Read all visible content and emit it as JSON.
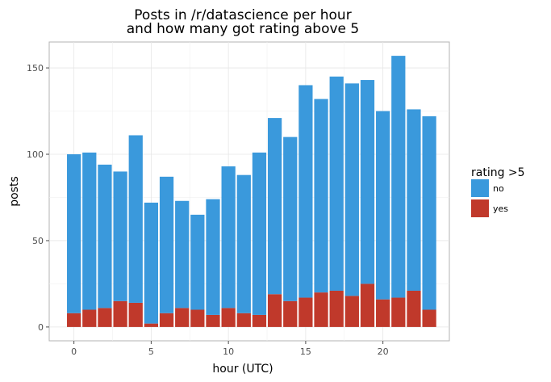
{
  "chart_data": {
    "type": "bar",
    "stacked": true,
    "title_line1": "Posts in /r/datascience per hour",
    "title_line2": "and how many got rating above 5",
    "xlabel": "hour (UTC)",
    "ylabel": "posts",
    "x": [
      0,
      1,
      2,
      3,
      4,
      5,
      6,
      7,
      8,
      9,
      10,
      11,
      12,
      13,
      14,
      15,
      16,
      17,
      18,
      19,
      20,
      21,
      22,
      23
    ],
    "xticks": [
      0,
      5,
      10,
      15,
      20
    ],
    "yticks": [
      0,
      50,
      100,
      150
    ],
    "xlim": [
      -1.6,
      24.3
    ],
    "ylim": [
      -8,
      165
    ],
    "grid": true,
    "legend_title": "rating >5",
    "legend_position": "right",
    "series": [
      {
        "name": "no",
        "color": "#3a99dc",
        "values": [
          92,
          91,
          83,
          75,
          97,
          70,
          79,
          62,
          55,
          67,
          82,
          80,
          94,
          102,
          95,
          123,
          112,
          124,
          123,
          118,
          109,
          140,
          105,
          112
        ]
      },
      {
        "name": "yes",
        "color": "#c0392b",
        "values": [
          8,
          10,
          11,
          15,
          14,
          2,
          8,
          11,
          10,
          7,
          11,
          8,
          7,
          19,
          15,
          17,
          20,
          21,
          18,
          25,
          16,
          17,
          21,
          10
        ]
      }
    ]
  }
}
